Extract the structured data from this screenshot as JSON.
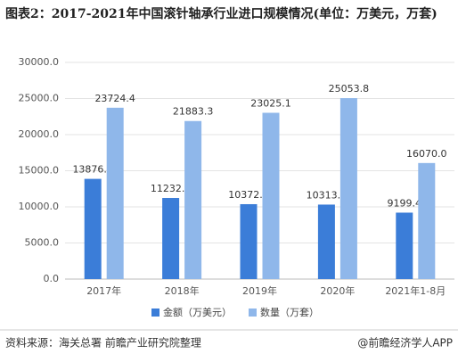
{
  "chart_data": {
    "type": "bar",
    "title": "图表2：2017-2021年中国滚针轴承行业进口规模情况(单位：万美元，万套)",
    "categories": [
      "2017年",
      "2018年",
      "2019年",
      "2020年",
      "2021年1-8月"
    ],
    "series": [
      {
        "name": "金额（万美元）",
        "color": "#3b7dd8",
        "values": [
          13876.1,
          11232.9,
          10372.2,
          10313.8,
          9199.4
        ]
      },
      {
        "name": "数量（万套）",
        "color": "#8fb7ea",
        "values": [
          23724.4,
          21883.3,
          23025.1,
          25053.8,
          16070.0
        ],
        "value_labels": [
          "23724.4",
          "21883.3",
          "23025.1",
          "25053.8",
          "16070.0"
        ]
      }
    ],
    "ylim": [
      0,
      30000
    ],
    "yticks": [
      {
        "value": 0,
        "label": "0.0"
      },
      {
        "value": 5000,
        "label": "5000.0"
      },
      {
        "value": 10000,
        "label": "10000.0"
      },
      {
        "value": 15000,
        "label": "15000.0"
      },
      {
        "value": 20000,
        "label": "20000.0"
      },
      {
        "value": 25000,
        "label": "25000.0"
      },
      {
        "value": 30000,
        "label": "30000.0"
      }
    ],
    "grid": true,
    "legend": "bottom",
    "source": "资料来源：海关总署 前瞻产业研究院整理",
    "credit": "@前瞻经济学人APP"
  }
}
